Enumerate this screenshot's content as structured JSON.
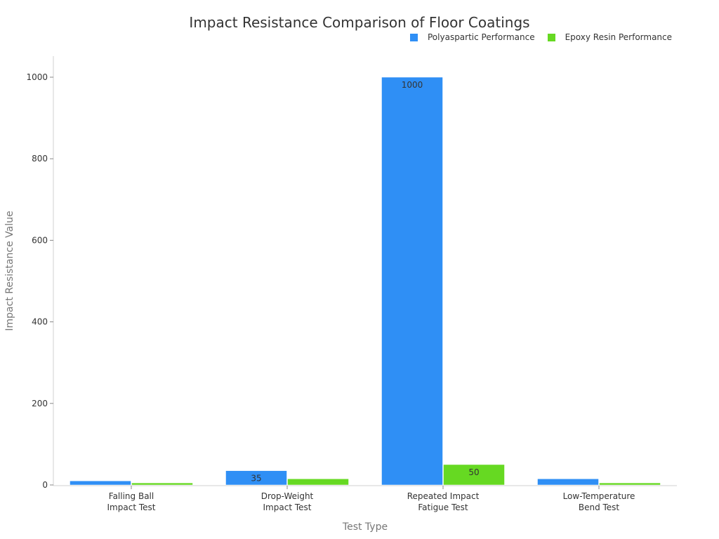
{
  "chart_data": {
    "type": "bar",
    "title": "Impact Resistance Comparison of Floor Coatings",
    "xlabel": "Test Type",
    "ylabel": "Impact Resistance Value",
    "categories": [
      "Falling Ball\nImpact Test",
      "Drop-Weight\nImpact Test",
      "Repeated Impact\nFatigue Test",
      "Low-Temperature\nBend Test"
    ],
    "series": [
      {
        "name": "Polyaspartic Performance",
        "color": "#2f8ff5",
        "values": [
          10,
          35,
          1000,
          15
        ]
      },
      {
        "name": "Epoxy Resin Performance",
        "color": "#66d922",
        "values": [
          5,
          15,
          50,
          5
        ]
      }
    ],
    "ylim": [
      0,
      1050
    ],
    "yticks": [
      0,
      200,
      400,
      600,
      800,
      1000
    ],
    "grid": false,
    "legend_position": "top-right"
  },
  "header": {
    "title": "Impact Resistance Comparison of Floor Coatings"
  },
  "legend": {
    "items": [
      {
        "label": "Polyaspartic Performance",
        "color": "#2f8ff5"
      },
      {
        "label": "Epoxy Resin Performance",
        "color": "#66d922"
      }
    ]
  }
}
